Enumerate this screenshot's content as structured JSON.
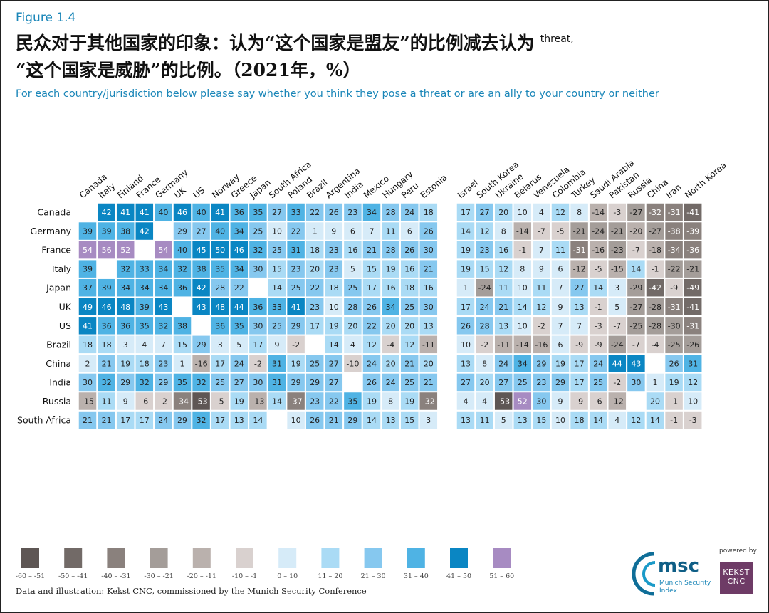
{
  "figure_label": "Figure 1.4",
  "title_line1": "民众对于其他国家的印象：认为“这个国家是盟友”的比例减去认为",
  "title_sup": "threat,",
  "title_line2": "“这个国家是威胁”的比例。（2021年，%）",
  "subtitle": "For each country/jurisdiction below please say whether you think they pose a threat or are an ally to your country or neither",
  "footer": "Data and illustration: Kekst CNC, commissioned by the Munich Security Conference",
  "logo": {
    "msc": "msc",
    "msc_sub": "Munich Security Index",
    "powered_by": "powered by",
    "kekst": "KEKST CNC"
  },
  "chart_data": {
    "type": "heatmap",
    "rows": [
      "Canada",
      "Germany",
      "France",
      "Italy",
      "Japan",
      "UK",
      "US",
      "Brazil",
      "China",
      "India",
      "Russia",
      "South Africa"
    ],
    "columns_left": [
      "Canada",
      "Italy",
      "Finland",
      "France",
      "Germany",
      "UK",
      "US",
      "Norway",
      "Greece",
      "Japan",
      "South Africa",
      "Poland",
      "Brazil",
      "Argentina",
      "India",
      "Mexico",
      "Hungary",
      "Peru",
      "Estonia"
    ],
    "columns_right": [
      "Israel",
      "South Korea",
      "Ukraine",
      "Belarus",
      "Venezuela",
      "Colombia",
      "Turkey",
      "Saudi Arabia",
      "Pakistan",
      "Russia",
      "China",
      "Iran",
      "North Korea"
    ],
    "values_left": [
      [
        null,
        42,
        41,
        41,
        40,
        46,
        40,
        41,
        36,
        35,
        27,
        33,
        22,
        26,
        23,
        34,
        28,
        24,
        18
      ],
      [
        39,
        39,
        38,
        42,
        null,
        29,
        27,
        40,
        34,
        25,
        10,
        22,
        1,
        9,
        6,
        7,
        11,
        6,
        26
      ],
      [
        54,
        56,
        52,
        null,
        54,
        40,
        45,
        50,
        46,
        32,
        25,
        31,
        18,
        23,
        16,
        21,
        28,
        26,
        30
      ],
      [
        39,
        null,
        32,
        33,
        34,
        32,
        38,
        35,
        34,
        30,
        15,
        23,
        20,
        23,
        5,
        15,
        19,
        16,
        21
      ],
      [
        37,
        39,
        34,
        34,
        34,
        36,
        42,
        28,
        22,
        null,
        14,
        25,
        22,
        18,
        25,
        17,
        16,
        18,
        16
      ],
      [
        49,
        46,
        48,
        39,
        43,
        null,
        43,
        48,
        44,
        36,
        33,
        41,
        23,
        10,
        28,
        26,
        34,
        25,
        30
      ],
      [
        41,
        36,
        36,
        35,
        32,
        38,
        null,
        36,
        35,
        30,
        25,
        29,
        17,
        19,
        20,
        22,
        20,
        20,
        13
      ],
      [
        18,
        18,
        3,
        4,
        7,
        15,
        29,
        3,
        5,
        17,
        9,
        -2,
        null,
        14,
        4,
        12,
        -4,
        12,
        -11
      ],
      [
        2,
        21,
        19,
        18,
        23,
        1,
        -16,
        17,
        24,
        -2,
        31,
        19,
        25,
        27,
        -10,
        24,
        20,
        21,
        20
      ],
      [
        30,
        32,
        29,
        32,
        29,
        35,
        32,
        25,
        27,
        30,
        31,
        29,
        29,
        27,
        null,
        26,
        24,
        25,
        21
      ],
      [
        -15,
        11,
        9,
        -6,
        -2,
        -34,
        -53,
        -5,
        19,
        -13,
        14,
        -37,
        23,
        22,
        35,
        19,
        8,
        19,
        -32
      ],
      [
        21,
        21,
        17,
        17,
        24,
        29,
        32,
        17,
        13,
        14,
        null,
        10,
        26,
        21,
        29,
        14,
        13,
        15,
        3
      ]
    ],
    "values_right": [
      [
        17,
        27,
        20,
        10,
        4,
        12,
        8,
        -14,
        -3,
        -27,
        -32,
        -31,
        -41
      ],
      [
        14,
        12,
        8,
        -14,
        -7,
        -5,
        -21,
        -24,
        -21,
        -20,
        -27,
        -38,
        -39
      ],
      [
        19,
        23,
        16,
        -1,
        7,
        11,
        -31,
        -16,
        -23,
        -7,
        -18,
        -34,
        -36
      ],
      [
        19,
        15,
        12,
        8,
        9,
        6,
        -12,
        -5,
        -15,
        14,
        -1,
        -22,
        -21
      ],
      [
        1,
        -24,
        11,
        10,
        11,
        7,
        27,
        14,
        3,
        -29,
        -42,
        -9,
        -49
      ],
      [
        17,
        24,
        21,
        14,
        12,
        9,
        13,
        -1,
        5,
        -27,
        -28,
        -31,
        -41
      ],
      [
        26,
        28,
        13,
        10,
        -2,
        7,
        7,
        -3,
        -7,
        -25,
        -28,
        -30,
        -31
      ],
      [
        10,
        -2,
        -11,
        -14,
        -16,
        6,
        -9,
        -9,
        -24,
        -7,
        -4,
        -25,
        -26
      ],
      [
        13,
        8,
        24,
        34,
        29,
        19,
        17,
        24,
        44,
        43,
        null,
        26,
        31
      ],
      [
        27,
        20,
        27,
        25,
        23,
        29,
        17,
        25,
        -2,
        30,
        1,
        19,
        12
      ],
      [
        4,
        4,
        -53,
        52,
        30,
        9,
        -9,
        -6,
        -12,
        null,
        20,
        -1,
        10
      ],
      [
        13,
        11,
        5,
        13,
        15,
        10,
        18,
        14,
        4,
        12,
        14,
        -1,
        -3
      ]
    ],
    "legend": [
      {
        "label": "-60 – -51",
        "min": -60,
        "max": -51,
        "color": "#5e5654"
      },
      {
        "label": "-50 – -41",
        "min": -50,
        "max": -41,
        "color": "#726a67"
      },
      {
        "label": "-40 – -31",
        "min": -40,
        "max": -31,
        "color": "#8a817d"
      },
      {
        "label": "-30 – -21",
        "min": -30,
        "max": -21,
        "color": "#a49d99"
      },
      {
        "label": "-20 – -11",
        "min": -20,
        "max": -11,
        "color": "#bab1ad"
      },
      {
        "label": "-10 – -1",
        "min": -10,
        "max": -1,
        "color": "#d9d1cf"
      },
      {
        "label": "0 – 10",
        "min": 0,
        "max": 10,
        "color": "#d6ebf8"
      },
      {
        "label": "11 – 20",
        "min": 11,
        "max": 20,
        "color": "#aadbf5"
      },
      {
        "label": "21 – 30",
        "min": 21,
        "max": 30,
        "color": "#86c8ef"
      },
      {
        "label": "31 – 40",
        "min": 31,
        "max": 40,
        "color": "#4fb3e4"
      },
      {
        "label": "41 – 50",
        "min": 41,
        "max": 50,
        "color": "#0a86c3"
      },
      {
        "label": "51 – 60",
        "min": 51,
        "max": 60,
        "color": "#a78bc2"
      }
    ],
    "legend_placement": "bottom-left"
  }
}
